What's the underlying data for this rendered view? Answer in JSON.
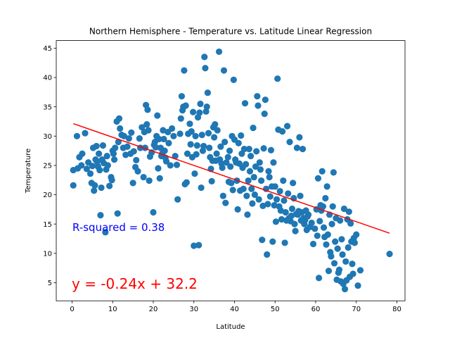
{
  "chart_data": {
    "type": "scatter",
    "title": "Northern Hemisphere - Temperature vs. Latitude Linear Regression",
    "xlabel": "Latitude",
    "ylabel": "Temperature",
    "xlim": [
      -3.9,
      82.0
    ],
    "ylim": [
      1.9,
      46.3
    ],
    "xticks": [
      0,
      10,
      20,
      30,
      40,
      50,
      60,
      70,
      80
    ],
    "yticks": [
      5,
      10,
      15,
      20,
      25,
      30,
      35,
      40,
      45
    ],
    "grid": false,
    "colors": {
      "points": "#1f77b4",
      "regression": "#ff0000",
      "r_squared_text": "#0000ff",
      "equation_text": "#ff0000"
    },
    "annotations": {
      "r_squared": "R-squared = 0.38",
      "equation": "y = -0.24x + 32.2"
    },
    "regression": {
      "slope": -0.24,
      "intercept": 32.2,
      "x_range": [
        0.3,
        78.2
      ]
    },
    "points": [
      [
        0.3,
        21.6
      ],
      [
        0.3,
        24.2
      ],
      [
        1.2,
        30.0
      ],
      [
        1.4,
        24.5
      ],
      [
        1.8,
        26.4
      ],
      [
        2.3,
        25.0
      ],
      [
        2.5,
        27.0
      ],
      [
        3.2,
        30.5
      ],
      [
        3.6,
        24.4
      ],
      [
        4.0,
        25.5
      ],
      [
        4.5,
        23.6
      ],
      [
        4.8,
        22.0
      ],
      [
        5.0,
        24.9
      ],
      [
        5.2,
        28.0
      ],
      [
        5.4,
        20.7
      ],
      [
        5.6,
        21.6
      ],
      [
        5.8,
        26.0
      ],
      [
        6.0,
        28.3
      ],
      [
        6.2,
        25.6
      ],
      [
        6.4,
        24.8
      ],
      [
        6.6,
        27.0
      ],
      [
        6.8,
        24.2
      ],
      [
        7.0,
        16.5
      ],
      [
        7.2,
        21.2
      ],
      [
        7.4,
        26.0
      ],
      [
        7.6,
        28.4
      ],
      [
        7.8,
        25.4
      ],
      [
        8.2,
        13.6
      ],
      [
        8.4,
        24.3
      ],
      [
        8.6,
        26.6
      ],
      [
        8.8,
        25.0
      ],
      [
        9.2,
        21.5
      ],
      [
        9.6,
        23.0
      ],
      [
        9.8,
        22.5
      ],
      [
        10.0,
        27.5
      ],
      [
        10.2,
        27.0
      ],
      [
        10.4,
        26.0
      ],
      [
        10.6,
        28.0
      ],
      [
        11.0,
        32.5
      ],
      [
        11.2,
        16.8
      ],
      [
        11.4,
        29.0
      ],
      [
        11.6,
        33.0
      ],
      [
        11.8,
        31.3
      ],
      [
        12.2,
        30.2
      ],
      [
        12.6,
        28.0
      ],
      [
        12.8,
        30.0
      ],
      [
        13.2,
        26.8
      ],
      [
        13.6,
        28.2
      ],
      [
        14.0,
        29.6
      ],
      [
        14.4,
        27.0
      ],
      [
        14.6,
        30.6
      ],
      [
        15.0,
        22.0
      ],
      [
        15.2,
        27.4
      ],
      [
        15.6,
        24.7
      ],
      [
        15.8,
        25.9
      ],
      [
        16.2,
        24.0
      ],
      [
        16.6,
        29.6
      ],
      [
        16.8,
        28.0
      ],
      [
        17.2,
        31.5
      ],
      [
        17.6,
        23.0
      ],
      [
        17.8,
        30.7
      ],
      [
        18.0,
        28.0
      ],
      [
        18.2,
        35.3
      ],
      [
        18.4,
        32.0
      ],
      [
        18.6,
        34.5
      ],
      [
        18.8,
        31.0
      ],
      [
        19.0,
        22.4
      ],
      [
        19.2,
        26.5
      ],
      [
        19.6,
        27.2
      ],
      [
        20.0,
        17.0
      ],
      [
        20.2,
        28.5
      ],
      [
        20.4,
        29.0
      ],
      [
        20.6,
        28.1
      ],
      [
        20.8,
        30.0
      ],
      [
        21.0,
        33.5
      ],
      [
        21.2,
        24.5
      ],
      [
        21.4,
        29.5
      ],
      [
        21.6,
        22.8
      ],
      [
        21.8,
        28.0
      ],
      [
        22.0,
        26.6
      ],
      [
        22.2,
        27.0
      ],
      [
        22.4,
        31.0
      ],
      [
        22.6,
        29.5
      ],
      [
        22.8,
        27.5
      ],
      [
        23.0,
        26.3
      ],
      [
        23.2,
        25.7
      ],
      [
        23.6,
        30.7
      ],
      [
        23.8,
        28.8
      ],
      [
        24.2,
        25.0
      ],
      [
        24.6,
        31.3
      ],
      [
        25.0,
        30.0
      ],
      [
        25.4,
        26.6
      ],
      [
        25.8,
        25.1
      ],
      [
        26.0,
        19.2
      ],
      [
        26.6,
        30.4
      ],
      [
        26.8,
        33.0
      ],
      [
        27.0,
        36.8
      ],
      [
        27.2,
        34.4
      ],
      [
        27.4,
        35.0
      ],
      [
        27.6,
        41.2
      ],
      [
        27.8,
        21.8
      ],
      [
        28.0,
        35.2
      ],
      [
        28.2,
        22.1
      ],
      [
        28.4,
        27.0
      ],
      [
        28.6,
        30.4
      ],
      [
        29.0,
        32.1
      ],
      [
        29.2,
        28.6
      ],
      [
        29.4,
        30.8
      ],
      [
        29.6,
        26.4
      ],
      [
        29.8,
        34.1
      ],
      [
        30.0,
        11.3
      ],
      [
        30.2,
        23.6
      ],
      [
        30.4,
        30.0
      ],
      [
        30.6,
        26.9
      ],
      [
        30.8,
        28.4
      ],
      [
        31.0,
        33.2
      ],
      [
        31.2,
        11.4
      ],
      [
        31.4,
        34.0
      ],
      [
        31.6,
        35.5
      ],
      [
        31.8,
        21.2
      ],
      [
        32.0,
        30.2
      ],
      [
        32.2,
        27.5
      ],
      [
        32.4,
        28.3
      ],
      [
        32.6,
        43.5
      ],
      [
        32.8,
        41.6
      ],
      [
        33.0,
        34.2
      ],
      [
        33.2,
        35.0
      ],
      [
        33.4,
        37.4
      ],
      [
        33.6,
        30.5
      ],
      [
        33.8,
        28.0
      ],
      [
        34.0,
        26.4
      ],
      [
        34.2,
        24.4
      ],
      [
        34.4,
        22.3
      ],
      [
        34.6,
        25.8
      ],
      [
        34.8,
        31.5
      ],
      [
        35.0,
        29.8
      ],
      [
        35.2,
        32.0
      ],
      [
        35.4,
        25.8
      ],
      [
        35.6,
        27.0
      ],
      [
        35.8,
        31.0
      ],
      [
        36.2,
        44.4
      ],
      [
        36.4,
        26.0
      ],
      [
        36.6,
        28.2
      ],
      [
        36.8,
        25.3
      ],
      [
        37.0,
        24.6
      ],
      [
        37.2,
        19.8
      ],
      [
        37.4,
        41.2
      ],
      [
        37.6,
        29.0
      ],
      [
        37.8,
        18.6
      ],
      [
        38.0,
        25.5
      ],
      [
        38.4,
        26.4
      ],
      [
        38.6,
        22.2
      ],
      [
        38.8,
        27.5
      ],
      [
        39.0,
        24.8
      ],
      [
        39.2,
        22.0
      ],
      [
        39.4,
        30.0
      ],
      [
        39.6,
        20.8
      ],
      [
        39.8,
        39.6
      ],
      [
        40.0,
        29.4
      ],
      [
        40.2,
        26.0
      ],
      [
        40.4,
        25.5
      ],
      [
        40.6,
        22.4
      ],
      [
        40.8,
        17.5
      ],
      [
        41.0,
        28.8
      ],
      [
        41.2,
        25.3
      ],
      [
        41.4,
        20.7
      ],
      [
        41.6,
        30.1
      ],
      [
        41.8,
        27.0
      ],
      [
        42.0,
        24.6
      ],
      [
        42.2,
        21.0
      ],
      [
        42.4,
        27.8
      ],
      [
        42.6,
        35.6
      ],
      [
        42.8,
        25.2
      ],
      [
        43.0,
        19.8
      ],
      [
        43.2,
        16.6
      ],
      [
        43.4,
        22.4
      ],
      [
        43.6,
        27.8
      ],
      [
        43.8,
        24.0
      ],
      [
        44.0,
        26.6
      ],
      [
        44.2,
        21.0
      ],
      [
        44.4,
        18.5
      ],
      [
        44.6,
        31.4
      ],
      [
        44.8,
        23.0
      ],
      [
        45.0,
        20.0
      ],
      [
        45.2,
        24.8
      ],
      [
        45.4,
        27.4
      ],
      [
        45.6,
        36.8
      ],
      [
        45.8,
        35.2
      ],
      [
        46.0,
        19.2
      ],
      [
        46.2,
        25.5
      ],
      [
        46.4,
        24.3
      ],
      [
        46.6,
        22.4
      ],
      [
        46.8,
        12.3
      ],
      [
        47.0,
        18.1
      ],
      [
        47.2,
        27.9
      ],
      [
        47.4,
        33.8
      ],
      [
        47.6,
        36.2
      ],
      [
        47.8,
        21.0
      ],
      [
        48.0,
        9.8
      ],
      [
        48.2,
        18.4
      ],
      [
        48.4,
        24.0
      ],
      [
        48.6,
        23.0
      ],
      [
        48.8,
        19.7
      ],
      [
        49.0,
        27.6
      ],
      [
        49.2,
        21.4
      ],
      [
        49.4,
        12.0
      ],
      [
        49.6,
        25.5
      ],
      [
        49.8,
        18.2
      ],
      [
        50.0,
        21.4
      ],
      [
        50.2,
        15.4
      ],
      [
        50.4,
        19.2
      ],
      [
        50.6,
        39.8
      ],
      [
        50.8,
        31.1
      ],
      [
        51.0,
        18.0
      ],
      [
        51.2,
        20.6
      ],
      [
        51.4,
        17.3
      ],
      [
        51.6,
        15.8
      ],
      [
        51.8,
        30.8
      ],
      [
        52.0,
        22.4
      ],
      [
        52.2,
        19.0
      ],
      [
        52.4,
        11.8
      ],
      [
        52.6,
        17.0
      ],
      [
        52.8,
        15.6
      ],
      [
        53.0,
        31.7
      ],
      [
        53.2,
        20.2
      ],
      [
        53.4,
        16.0
      ],
      [
        53.6,
        29.0
      ],
      [
        53.8,
        15.5
      ],
      [
        54.0,
        16.4
      ],
      [
        54.2,
        17.6
      ],
      [
        54.4,
        22.0
      ],
      [
        54.6,
        19.4
      ],
      [
        54.8,
        15.0
      ],
      [
        55.0,
        13.8
      ],
      [
        55.2,
        16.7
      ],
      [
        55.4,
        28.0
      ],
      [
        55.6,
        16.6
      ],
      [
        55.8,
        17.2
      ],
      [
        56.0,
        29.8
      ],
      [
        56.2,
        19.8
      ],
      [
        56.4,
        15.6
      ],
      [
        56.6,
        17.0
      ],
      [
        56.8,
        27.8
      ],
      [
        57.0,
        16.0
      ],
      [
        57.2,
        15.0
      ],
      [
        57.4,
        15.7
      ],
      [
        57.6,
        17.3
      ],
      [
        57.8,
        14.0
      ],
      [
        58.0,
        16.3
      ],
      [
        58.2,
        16.6
      ],
      [
        58.6,
        14.5
      ],
      [
        59.0,
        15.2
      ],
      [
        59.4,
        11.6
      ],
      [
        59.8,
        14.2
      ],
      [
        60.2,
        17.5
      ],
      [
        60.4,
        13.0
      ],
      [
        60.6,
        22.8
      ],
      [
        60.8,
        5.8
      ],
      [
        61.0,
        15.5
      ],
      [
        61.2,
        18.2
      ],
      [
        61.4,
        17.3
      ],
      [
        61.6,
        24.0
      ],
      [
        61.8,
        18.0
      ],
      [
        62.0,
        14.4
      ],
      [
        62.2,
        12.8
      ],
      [
        62.4,
        19.4
      ],
      [
        62.6,
        11.5
      ],
      [
        62.8,
        21.4
      ],
      [
        63.0,
        13.2
      ],
      [
        63.2,
        7.0
      ],
      [
        63.4,
        16.6
      ],
      [
        63.6,
        10.2
      ],
      [
        63.8,
        9.5
      ],
      [
        64.0,
        15.0
      ],
      [
        64.2,
        18.0
      ],
      [
        64.4,
        23.8
      ],
      [
        64.6,
        8.3
      ],
      [
        64.8,
        12.0
      ],
      [
        65.0,
        16.0
      ],
      [
        65.2,
        5.5
      ],
      [
        65.4,
        10.8
      ],
      [
        65.6,
        6.7
      ],
      [
        65.8,
        7.2
      ],
      [
        66.0,
        15.6
      ],
      [
        66.2,
        5.2
      ],
      [
        66.4,
        12.4
      ],
      [
        66.6,
        9.8
      ],
      [
        66.8,
        4.8
      ],
      [
        67.0,
        17.6
      ],
      [
        67.2,
        3.9
      ],
      [
        67.4,
        8.6
      ],
      [
        67.6,
        5.4
      ],
      [
        67.8,
        15.8
      ],
      [
        68.0,
        11.0
      ],
      [
        68.2,
        17.1
      ],
      [
        68.4,
        6.0
      ],
      [
        68.6,
        15.1
      ],
      [
        68.8,
        12.0
      ],
      [
        69.0,
        8.2
      ],
      [
        69.2,
        6.5
      ],
      [
        69.4,
        12.6
      ],
      [
        69.6,
        11.8
      ],
      [
        70.0,
        13.2
      ],
      [
        70.4,
        4.5
      ],
      [
        71.0,
        7.1
      ],
      [
        78.2,
        9.9
      ]
    ]
  }
}
